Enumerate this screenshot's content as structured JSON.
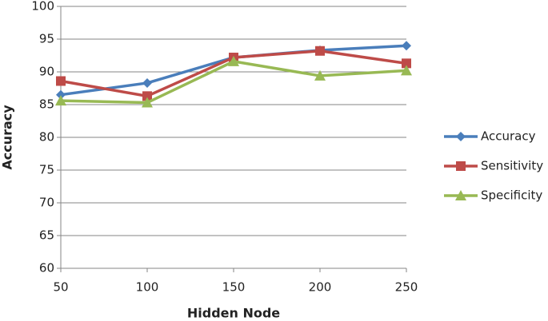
{
  "chart_data": {
    "type": "line",
    "x_label": "Hidden Node",
    "y_label": "Accuracy",
    "x": [
      50,
      100,
      150,
      200,
      250
    ],
    "xlim": [
      50,
      250
    ],
    "xticks": [
      50,
      100,
      150,
      200,
      250
    ],
    "ylim": [
      60,
      100
    ],
    "yticks": [
      60,
      65,
      70,
      75,
      80,
      85,
      90,
      95,
      100
    ],
    "grid": true,
    "legend": "right",
    "series": [
      {
        "name": "Accuracy",
        "color": "#4a7ebb",
        "marker": "diamond",
        "values": [
          86.5,
          88.3,
          92.2,
          93.3,
          94.0
        ]
      },
      {
        "name": "Sensitivity",
        "color": "#be4b48",
        "marker": "square",
        "values": [
          88.6,
          86.3,
          92.2,
          93.2,
          91.3
        ]
      },
      {
        "name": "Specificity",
        "color": "#98b954",
        "marker": "triangle",
        "values": [
          85.6,
          85.3,
          91.6,
          89.4,
          90.2
        ]
      }
    ]
  }
}
